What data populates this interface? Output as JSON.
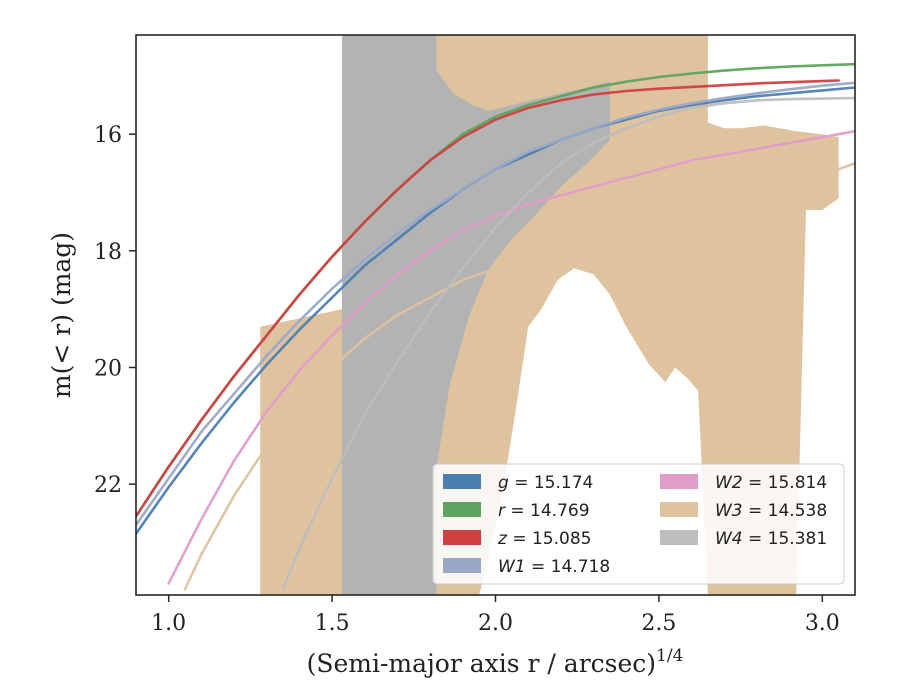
{
  "chart_data": {
    "type": "line",
    "xlabel": "(Semi-major axis r / arcsec)",
    "xlabel_italic_var": "r",
    "xlabel_exponent": "1/4",
    "ylabel": "m(< r) (mag)",
    "xlim": [
      0.9,
      3.1
    ],
    "ylim": [
      23.9,
      14.3
    ],
    "y_inverted": true,
    "grid": false,
    "xticks": [
      1.0,
      1.5,
      2.0,
      2.5,
      3.0
    ],
    "xtick_labels": [
      "1.0",
      "1.5",
      "2.0",
      "2.5",
      "3.0"
    ],
    "yticks": [
      16,
      18,
      20,
      22
    ],
    "ytick_labels": [
      "16",
      "18",
      "20",
      "22"
    ],
    "legend_position": "bottom-right",
    "series": [
      {
        "name": "g = 15.174",
        "band": "g",
        "mag": "15.174",
        "color": "#4c7fb0",
        "x": [
          0.9,
          1.0,
          1.1,
          1.2,
          1.3,
          1.4,
          1.5,
          1.6,
          1.7,
          1.8,
          1.9,
          2.0,
          2.1,
          2.2,
          2.3,
          2.4,
          2.5,
          2.6,
          2.7,
          2.8,
          2.9,
          3.0,
          3.1
        ],
        "y": [
          22.85,
          22.05,
          21.3,
          20.6,
          19.95,
          19.35,
          18.8,
          18.25,
          17.8,
          17.35,
          16.95,
          16.6,
          16.35,
          16.1,
          15.9,
          15.75,
          15.6,
          15.5,
          15.42,
          15.35,
          15.3,
          15.25,
          15.2
        ]
      },
      {
        "name": "r = 14.769",
        "band": "r",
        "mag": "14.769",
        "color": "#5ea45e",
        "x": [
          0.9,
          1.0,
          1.1,
          1.2,
          1.3,
          1.4,
          1.5,
          1.6,
          1.7,
          1.8,
          1.9,
          2.0,
          2.1,
          2.2,
          2.3,
          2.4,
          2.5,
          2.6,
          2.7,
          2.8,
          2.9,
          3.0,
          3.1
        ],
        "y": [
          22.55,
          21.7,
          20.9,
          20.15,
          19.45,
          18.75,
          18.1,
          17.5,
          16.95,
          16.45,
          16.0,
          15.7,
          15.5,
          15.35,
          15.2,
          15.1,
          15.02,
          14.96,
          14.91,
          14.87,
          14.84,
          14.82,
          14.8
        ]
      },
      {
        "name": "z = 15.085",
        "band": "z",
        "mag": "15.085",
        "color": "#d04040",
        "x": [
          0.9,
          1.0,
          1.1,
          1.2,
          1.3,
          1.4,
          1.5,
          1.6,
          1.7,
          1.8,
          1.9,
          2.0,
          2.1,
          2.2,
          2.3,
          2.4,
          2.5,
          2.6,
          2.7,
          2.8,
          2.9,
          3.0,
          3.05
        ],
        "y": [
          22.55,
          21.7,
          20.9,
          20.15,
          19.45,
          18.75,
          18.1,
          17.5,
          16.95,
          16.45,
          16.05,
          15.75,
          15.55,
          15.42,
          15.32,
          15.26,
          15.22,
          15.19,
          15.16,
          15.13,
          15.11,
          15.09,
          15.08
        ]
      },
      {
        "name": "W1 = 14.718",
        "band": "W1",
        "mag": "14.718",
        "color": "#9aa8c8",
        "x": [
          0.9,
          1.0,
          1.1,
          1.2,
          1.3,
          1.4,
          1.5,
          1.6,
          1.7,
          1.8,
          1.9,
          2.0,
          2.1,
          2.2,
          2.3,
          2.4,
          2.5,
          2.6,
          2.7,
          2.8,
          2.9,
          3.0,
          3.1
        ],
        "y": [
          22.7,
          21.9,
          21.1,
          20.45,
          19.8,
          19.2,
          18.65,
          18.15,
          17.7,
          17.3,
          16.95,
          16.6,
          16.3,
          16.1,
          15.9,
          15.72,
          15.58,
          15.47,
          15.38,
          15.3,
          15.23,
          15.17,
          15.12
        ]
      },
      {
        "name": "W2 = 15.814",
        "band": "W2",
        "mag": "15.814",
        "color": "#e29cca",
        "x": [
          1.0,
          1.1,
          1.2,
          1.3,
          1.4,
          1.5,
          1.6,
          1.7,
          1.8,
          1.9,
          2.0,
          2.1,
          2.2,
          2.3,
          2.4,
          2.5,
          2.6,
          2.7,
          2.8,
          2.9,
          3.0,
          3.1
        ],
        "y": [
          23.7,
          22.6,
          21.6,
          20.75,
          20.05,
          19.45,
          18.9,
          18.4,
          18.0,
          17.65,
          17.4,
          17.2,
          17.05,
          16.9,
          16.75,
          16.6,
          16.45,
          16.35,
          16.25,
          16.15,
          16.05,
          15.95
        ]
      },
      {
        "name": "W3 = 14.538",
        "band": "W3",
        "mag": "14.538",
        "color": "#dfc39f",
        "x": [
          1.05,
          1.1,
          1.2,
          1.3,
          1.4,
          1.5,
          1.6,
          1.7,
          1.8,
          1.9,
          2.0,
          2.1,
          2.2,
          2.3,
          2.4,
          2.5,
          2.6,
          2.7,
          2.8,
          2.9,
          3.0,
          3.1
        ],
        "y": [
          23.8,
          23.2,
          22.2,
          21.35,
          20.6,
          20.0,
          19.5,
          19.1,
          18.8,
          18.5,
          18.3,
          18.15,
          18.0,
          17.85,
          17.7,
          17.5,
          17.35,
          17.2,
          17.05,
          16.9,
          16.7,
          16.5
        ]
      },
      {
        "name": "W4 = 15.381",
        "band": "W4",
        "mag": "15.381",
        "color": "#bdbdbd",
        "x": [
          1.35,
          1.4,
          1.5,
          1.6,
          1.7,
          1.8,
          1.9,
          2.0,
          2.1,
          2.2,
          2.3,
          2.4,
          2.5,
          2.6,
          2.7,
          2.8,
          2.9,
          3.0,
          3.1
        ],
        "y": [
          23.8,
          23.1,
          21.9,
          20.8,
          19.9,
          19.05,
          18.3,
          17.6,
          17.0,
          16.5,
          16.15,
          15.9,
          15.7,
          15.55,
          15.47,
          15.42,
          15.4,
          15.39,
          15.38
        ]
      }
    ],
    "bands": [
      {
        "name": "W3 uncertainty",
        "color": "#dfc39f",
        "x": [
          1.28,
          1.28,
          1.53,
          1.53,
          1.82,
          1.82,
          1.9,
          1.96,
          2.02,
          2.08,
          2.14,
          2.2,
          2.26,
          2.32,
          2.4,
          2.46,
          2.52,
          2.58,
          2.62,
          2.65,
          2.65,
          2.7,
          2.75,
          2.82,
          2.92,
          3.0,
          3.05,
          3.05,
          3.0,
          2.95,
          2.92,
          2.92,
          2.88,
          2.88,
          2.82,
          2.75,
          2.7,
          2.67,
          2.65,
          2.65,
          2.62,
          2.59,
          2.55,
          2.52,
          2.47,
          2.4,
          2.35,
          2.3,
          2.24,
          2.19,
          2.14,
          2.1,
          2.06,
          2.02,
          1.98,
          1.95,
          1.93,
          1.93,
          1.86,
          1.82,
          1.82,
          1.53,
          1.53
        ],
        "y": [
          23.9,
          19.3,
          19.0,
          18.65,
          18.3,
          14.3,
          14.3,
          14.3,
          14.3,
          14.3,
          14.3,
          14.3,
          14.3,
          14.3,
          14.3,
          14.3,
          14.3,
          14.3,
          14.3,
          14.3,
          15.8,
          15.9,
          15.9,
          15.85,
          15.95,
          16.0,
          16.05,
          17.1,
          17.3,
          17.3,
          23.9,
          23.9,
          23.9,
          23.9,
          23.9,
          23.9,
          23.9,
          23.9,
          23.9,
          23.9,
          20.4,
          20.2,
          20.0,
          20.25,
          19.95,
          19.3,
          18.75,
          18.4,
          18.3,
          18.5,
          19.0,
          19.3,
          20.8,
          22.2,
          23.2,
          23.9,
          23.9,
          23.9,
          23.9,
          23.9,
          23.9,
          23.9,
          23.9
        ]
      },
      {
        "name": "W4 uncertainty",
        "color": "#b3b3b3",
        "x": [
          1.53,
          1.53,
          1.82,
          1.82,
          1.87,
          1.93,
          1.98,
          2.05,
          2.12,
          2.2,
          2.28,
          2.35,
          2.35,
          2.28,
          2.2,
          2.12,
          2.05,
          1.98,
          1.92,
          1.86,
          1.82,
          1.82,
          1.53
        ],
        "y": [
          23.9,
          14.3,
          14.3,
          14.9,
          15.3,
          15.5,
          15.6,
          15.5,
          15.4,
          15.3,
          15.2,
          15.1,
          16.1,
          16.5,
          16.9,
          17.4,
          17.8,
          18.3,
          19.1,
          20.3,
          21.7,
          23.9,
          23.9
        ]
      }
    ],
    "legend": [
      {
        "symbol": "g",
        "value": "= 15.174",
        "color": "#4c7fb0"
      },
      {
        "symbol": "r",
        "value": "= 14.769",
        "color": "#5ea45e"
      },
      {
        "symbol": "z",
        "value": "= 15.085",
        "color": "#d04040"
      },
      {
        "symbol": "W1",
        "value": "= 14.718",
        "color": "#9aa8c8"
      },
      {
        "symbol": "W2",
        "value": "= 15.814",
        "color": "#e29cca"
      },
      {
        "symbol": "W3",
        "value": "= 14.538",
        "color": "#dfc39f"
      },
      {
        "symbol": "W4",
        "value": "= 15.381",
        "color": "#bdbdbd"
      }
    ]
  }
}
